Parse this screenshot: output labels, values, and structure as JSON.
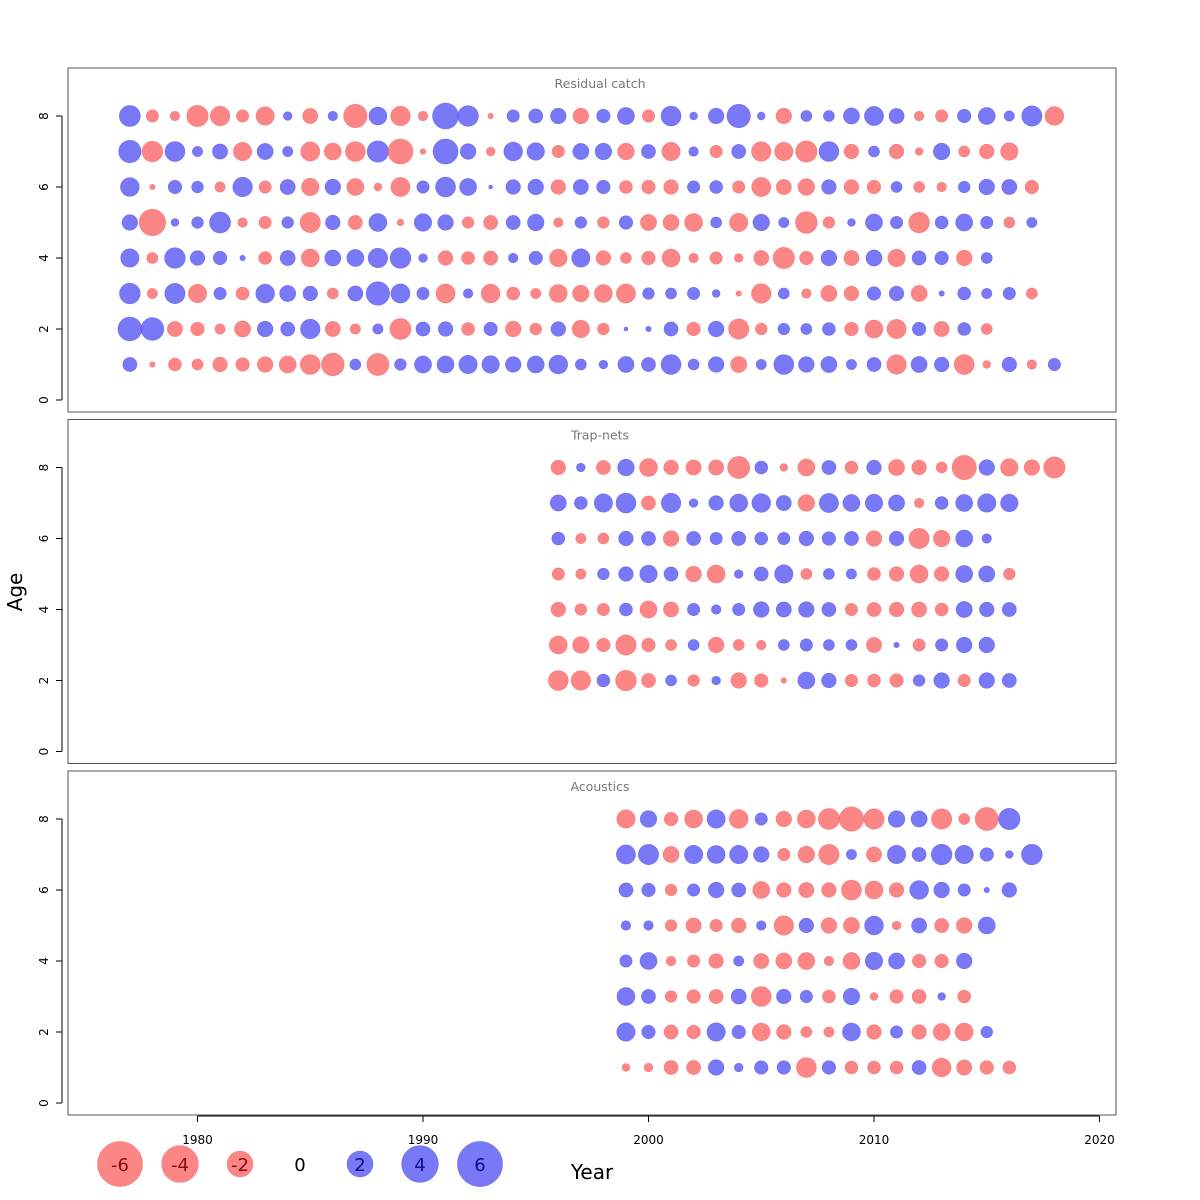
{
  "chart_data": {
    "type": "scatter",
    "xlabel": "Year",
    "ylabel": "Age",
    "xlim": [
      1974,
      2020
    ],
    "ylim": [
      0,
      9
    ],
    "x_ticks": [
      1980,
      1990,
      2000,
      2010,
      2020
    ],
    "y_ticks": [
      0,
      2,
      4,
      6,
      8
    ],
    "positive_color": "#5b5bf5",
    "negative_color": "#fb6b6b",
    "legend": {
      "placement": "bottom-left",
      "values": [
        -6,
        -4,
        -2,
        0,
        2,
        4,
        6
      ],
      "labels": [
        "-6",
        "-4",
        "-2",
        "0",
        "2",
        "4",
        "6"
      ]
    },
    "panels": [
      {
        "title": "Residual catch",
        "start_year": 1977,
        "ages": [
          8,
          7,
          6,
          5,
          4,
          3,
          2,
          1
        ],
        "residuals": [
          [
            2.9,
            -1.0,
            -0.6,
            -3.0,
            -2.5,
            -1.0,
            -2.2,
            0.5,
            -1.5,
            0.6,
            -3.6,
            2.1,
            -2.5,
            -0.6,
            4.4,
            2.8,
            -0.2,
            1.0,
            1.3,
            1.6,
            -1.6,
            1.2,
            1.9,
            -1.0,
            2.6,
            0.4,
            1.6,
            3.6,
            0.4,
            -1.6,
            0.8,
            0.8,
            1.7,
            2.4,
            1.5,
            -0.6,
            -1.0,
            1.2,
            1.9,
            0.7,
            2.7,
            -2.3
          ],
          [
            3.3,
            -2.8,
            2.6,
            0.7,
            1.5,
            -2.2,
            1.7,
            0.7,
            -2.4,
            -1.9,
            -2.6,
            3.0,
            -4.1,
            -0.2,
            4.1,
            1.6,
            -0.5,
            2.3,
            2.0,
            -1.0,
            1.7,
            1.8,
            -1.8,
            1.3,
            -2.2,
            0.6,
            -1.0,
            1.3,
            -2.5,
            -2.2,
            -3.0,
            2.6,
            -1.4,
            0.8,
            -1.4,
            -0.4,
            1.8,
            -0.8,
            -1.4,
            -2.0
          ],
          [
            2.3,
            -0.2,
            1.2,
            0.9,
            -0.7,
            2.5,
            -1.0,
            1.5,
            -2.0,
            1.6,
            -1.9,
            -0.4,
            -2.4,
            1.0,
            2.6,
            1.9,
            0.1,
            1.4,
            1.6,
            -1.4,
            1.5,
            1.2,
            -1.1,
            -1.2,
            -1.4,
            1.0,
            1.1,
            -1.0,
            -2.4,
            -1.5,
            -1.8,
            1.4,
            -1.4,
            -1.2,
            0.8,
            -0.8,
            -0.6,
            0.9,
            1.6,
            1.5,
            -1.2
          ],
          [
            1.6,
            -4.6,
            0.4,
            0.9,
            2.9,
            -0.6,
            -1.0,
            0.9,
            -2.7,
            1.4,
            -1.3,
            2.1,
            -0.3,
            2.0,
            1.6,
            -0.9,
            -1.3,
            1.3,
            1.8,
            -0.6,
            0.9,
            -0.9,
            1.2,
            -1.7,
            -1.7,
            -2.1,
            0.8,
            -2.2,
            1.8,
            0.7,
            -3.1,
            -0.9,
            0.4,
            1.9,
            1.0,
            -2.8,
            1.1,
            1.9,
            1.0,
            -0.8,
            0.7
          ],
          [
            2.2,
            -0.8,
            2.8,
            1.4,
            1.2,
            0.2,
            -1.1,
            1.5,
            -2.1,
            1.7,
            1.9,
            2.5,
            2.8,
            0.5,
            -1.4,
            -1.1,
            -1.3,
            0.6,
            1.2,
            -2.0,
            2.2,
            -1.4,
            -0.8,
            -1.2,
            -2.1,
            -0.6,
            -1.0,
            -0.5,
            -1.5,
            -3.0,
            -1.2,
            1.6,
            -1.5,
            1.7,
            -2.0,
            1.3,
            1.2,
            -1.6,
            0.8
          ],
          [
            2.8,
            -0.7,
            2.7,
            -2.2,
            1.0,
            -1.1,
            2.3,
            1.7,
            1.4,
            -0.8,
            1.5,
            3.6,
            2.4,
            1.0,
            -2.4,
            0.6,
            -2.3,
            -1.1,
            -0.7,
            -2.1,
            -1.8,
            -2.1,
            -2.4,
            0.9,
            0.8,
            1.0,
            0.4,
            -0.2,
            -2.5,
            0.8,
            -0.6,
            -1.7,
            -1.4,
            1.2,
            1.4,
            -1.7,
            0.2,
            1.1,
            0.7,
            1.0,
            -0.8
          ],
          [
            3.7,
            3.4,
            -1.5,
            -1.2,
            -0.7,
            -1.7,
            1.6,
            1.3,
            2.5,
            -1.5,
            -0.7,
            0.7,
            -2.9,
            1.3,
            1.4,
            -1.1,
            1.2,
            -1.6,
            -0.9,
            1.4,
            -2.0,
            -0.9,
            0.1,
            0.2,
            1.3,
            -1.2,
            1.6,
            -2.7,
            -0.9,
            0.9,
            0.8,
            1.1,
            -1.2,
            -2.1,
            -2.4,
            1.2,
            -1.5,
            1.1,
            -0.8
          ],
          [
            1.3,
            -0.2,
            -1.1,
            -0.8,
            -1.4,
            -1.2,
            -1.6,
            -1.9,
            -2.6,
            -3.4,
            0.8,
            -3.2,
            0.9,
            1.9,
            1.9,
            2.2,
            2.0,
            1.6,
            1.9,
            2.3,
            0.8,
            0.5,
            1.7,
            1.3,
            2.6,
            0.8,
            1.6,
            -1.7,
            0.7,
            2.6,
            1.6,
            1.7,
            0.7,
            1.3,
            -2.5,
            1.7,
            1.4,
            -2.6,
            -0.4,
            1.4,
            -0.6,
            1.0
          ]
        ]
      },
      {
        "title": "Trap-nets",
        "start_year": 1996,
        "ages": [
          8,
          7,
          6,
          5,
          4,
          3,
          2
        ],
        "residuals": [
          [
            -1.4,
            0.5,
            -1.3,
            1.8,
            -2.1,
            -1.4,
            -1.5,
            -1.5,
            -3.2,
            1.1,
            -0.4,
            -1.9,
            1.3,
            -1.1,
            1.4,
            -1.7,
            -1.4,
            -0.8,
            -3.9,
            1.6,
            -2.0,
            -1.6,
            -3.0
          ],
          [
            1.7,
            1.1,
            2.2,
            2.6,
            -1.3,
            2.5,
            0.5,
            1.4,
            2.1,
            2.3,
            1.5,
            -1.8,
            2.4,
            1.9,
            2.0,
            1.7,
            -0.6,
            1.1,
            1.9,
            2.2,
            2.0
          ],
          [
            1.1,
            -0.7,
            -0.8,
            1.4,
            1.3,
            -1.6,
            1.3,
            1.0,
            1.3,
            1.1,
            1.0,
            1.4,
            1.2,
            1.3,
            -1.6,
            1.4,
            -2.7,
            -1.8,
            1.9,
            0.6
          ],
          [
            -1.0,
            -0.7,
            0.9,
            1.4,
            2.0,
            1.3,
            -1.6,
            -2.1,
            0.5,
            1.3,
            2.2,
            -0.8,
            0.8,
            0.7,
            -1.1,
            -1.4,
            -2.1,
            -1.4,
            1.9,
            1.7,
            -0.9
          ],
          [
            -1.4,
            -0.9,
            -1.0,
            1.1,
            -1.9,
            -1.5,
            1.0,
            0.6,
            1.0,
            1.6,
            1.5,
            1.6,
            1.3,
            -1.0,
            -1.3,
            -1.4,
            -1.5,
            -1.1,
            1.7,
            1.4,
            1.3
          ],
          [
            -2.1,
            -1.8,
            -1.2,
            -2.7,
            -1.2,
            -0.8,
            0.8,
            -1.6,
            -0.8,
            -0.6,
            0.8,
            1.0,
            0.8,
            0.8,
            -1.5,
            0.2,
            -1.0,
            1.0,
            1.6,
            1.6
          ],
          [
            -2.6,
            -2.5,
            1.1,
            -2.8,
            -1.3,
            0.8,
            -0.9,
            0.5,
            -1.6,
            -1.2,
            -0.2,
            1.9,
            1.4,
            -1.0,
            -1.1,
            -1.2,
            0.9,
            1.6,
            -1.0,
            1.6,
            1.3
          ]
        ]
      },
      {
        "title": "Acoustics",
        "start_year": 1999,
        "ages": [
          8,
          7,
          6,
          5,
          4,
          3,
          2,
          1
        ],
        "residuals": [
          [
            -2.2,
            1.8,
            -1.2,
            -2.1,
            2.2,
            -2.3,
            1.0,
            -1.6,
            -2.1,
            -2.9,
            -3.9,
            -2.7,
            1.8,
            1.7,
            -2.7,
            -0.8,
            -3.5,
            3.0
          ],
          [
            2.4,
            2.7,
            -1.7,
            2.2,
            2.1,
            2.2,
            1.6,
            -1.0,
            -1.8,
            -2.7,
            0.7,
            -1.5,
            2.2,
            1.3,
            2.8,
            2.2,
            1.2,
            0.4,
            2.8
          ],
          [
            1.3,
            1.2,
            -0.9,
            1.0,
            1.6,
            1.3,
            -1.9,
            -1.4,
            -1.5,
            -1.4,
            -2.6,
            -2.1,
            -1.4,
            2.3,
            1.6,
            1.0,
            0.2,
            1.4
          ],
          [
            0.6,
            0.6,
            -0.9,
            -1.5,
            -1.0,
            -1.4,
            0.6,
            -2.5,
            1.4,
            -1.6,
            -1.7,
            2.3,
            -0.5,
            1.5,
            -1.3,
            -1.6,
            1.9
          ],
          [
            1.0,
            1.9,
            -0.6,
            -1.0,
            -1.4,
            0.7,
            -1.5,
            -1.7,
            -1.9,
            -0.6,
            -1.9,
            2.0,
            1.7,
            -1.2,
            -1.2,
            1.6
          ],
          [
            2.1,
            1.3,
            -0.9,
            -1.2,
            -1.3,
            1.5,
            -2.6,
            1.4,
            1.0,
            -1.1,
            1.8,
            -0.4,
            -1.2,
            -1.3,
            0.4,
            -1.1
          ],
          [
            2.2,
            1.2,
            -1.3,
            -1.2,
            2.2,
            1.2,
            -2.1,
            -1.4,
            -0.8,
            -0.7,
            2.1,
            -1.4,
            1.0,
            -1.4,
            -1.9,
            -2.1,
            0.9
          ],
          [
            -0.4,
            -0.5,
            -1.3,
            -1.3,
            1.6,
            0.5,
            1.2,
            1.2,
            -2.6,
            1.2,
            -1.1,
            -1.1,
            -1.1,
            1.3,
            -2.3,
            -1.5,
            -1.2,
            -1.1
          ]
        ]
      }
    ]
  }
}
